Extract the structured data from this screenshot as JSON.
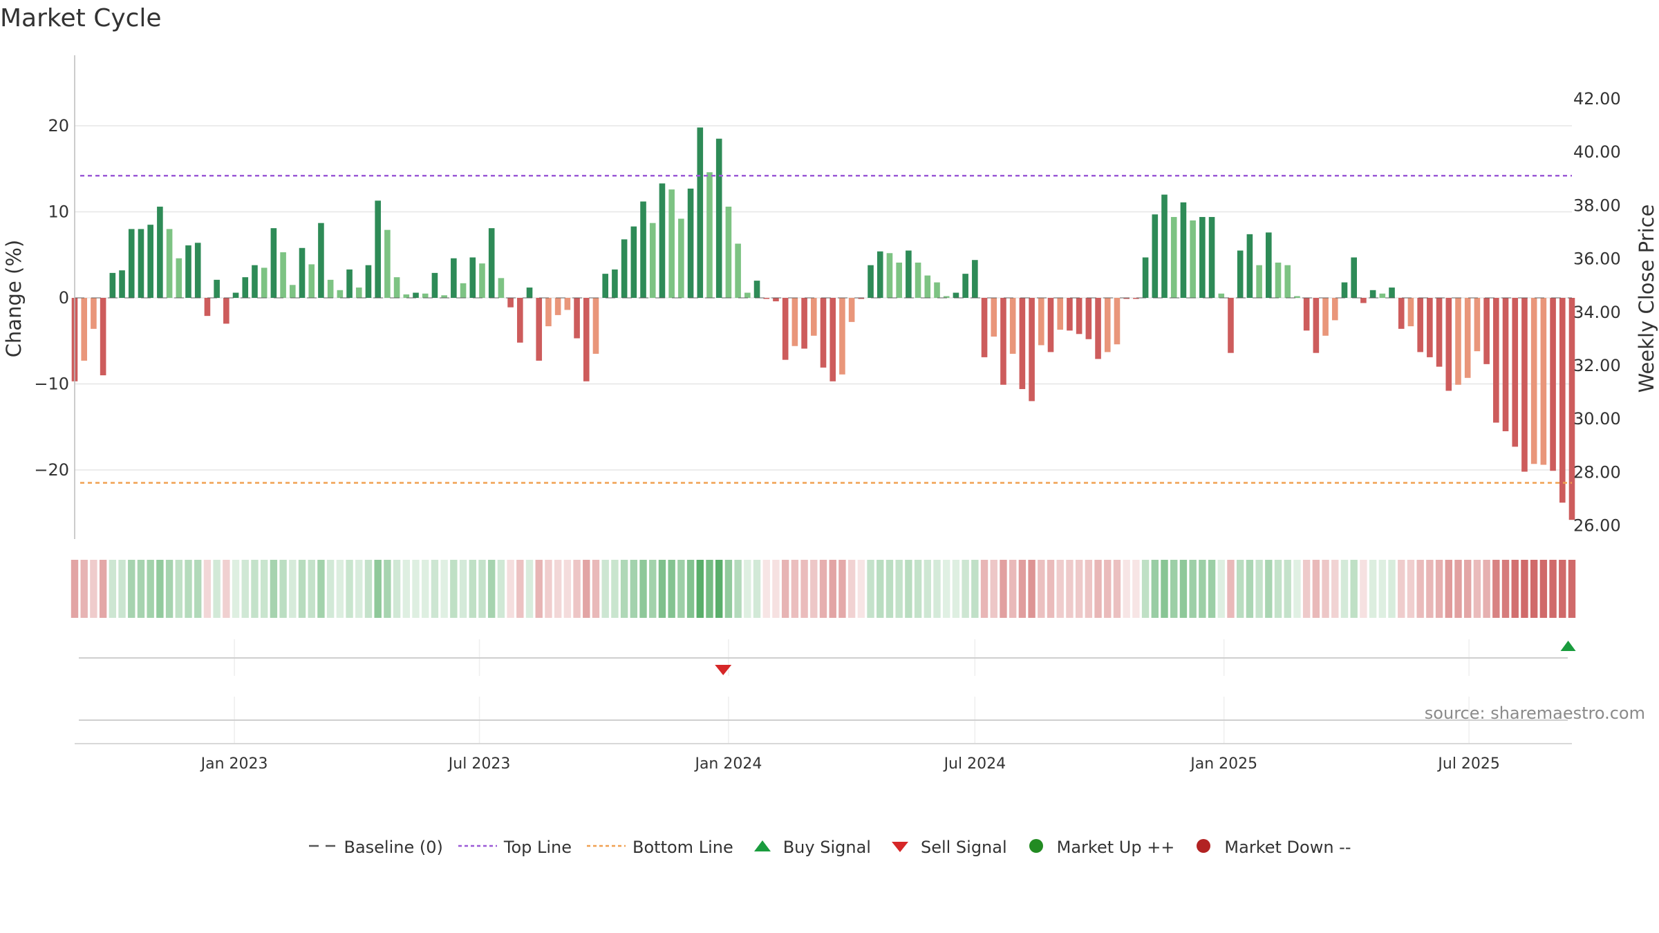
{
  "title": "Market Cycle",
  "source_text": "source: sharemaestro.com",
  "colors": {
    "up_strong": "#2e8b57",
    "up_light": "#7dc383",
    "down_strong": "#cd5c5c",
    "down_light": "#e9967a",
    "top_line": "#9b59d6",
    "bottom_line": "#f0a050",
    "baseline": "#555555",
    "buy": "#1a9c3e",
    "sell": "#d62728",
    "market_up": "#228b22",
    "market_down": "#b22222"
  },
  "legend": [
    {
      "label": "Baseline (0)",
      "symbol": "dash-line"
    },
    {
      "label": "Top Line",
      "symbol": "dotted-purple"
    },
    {
      "label": "Bottom Line",
      "symbol": "dotted-orange"
    },
    {
      "label": "Buy Signal",
      "symbol": "triangle-up-icon"
    },
    {
      "label": "Sell Signal",
      "symbol": "triangle-down-icon"
    },
    {
      "label": "Market Up ++",
      "symbol": "green-dot-icon"
    },
    {
      "label": "Market Down --",
      "symbol": "red-dot-icon"
    }
  ],
  "chart_data": {
    "type": "bar",
    "title": "Market Cycle",
    "ylabel": "Change (%)",
    "y2label": "Weekly Close Price",
    "ylim": [
      -28,
      28
    ],
    "y_ticks": [
      20,
      10,
      0,
      -10,
      -20
    ],
    "y_tick_labels": [
      "20",
      "10",
      "0",
      "−10",
      "−20"
    ],
    "y2lim": [
      25.6,
      43.8
    ],
    "y2_ticks": [
      42,
      40,
      38,
      36,
      34,
      32,
      30,
      28,
      26
    ],
    "y2_tick_labels": [
      "42.00",
      "40.00",
      "38.00",
      "36.00",
      "34.00",
      "32.00",
      "30.00",
      "28.00",
      "26.00"
    ],
    "x_range": [
      "2022-09-05",
      "2025-09-15"
    ],
    "x_ticks": [
      {
        "date": "2023-01-01",
        "label": "Jan 2023"
      },
      {
        "date": "2023-07-01",
        "label": "Jul 2023"
      },
      {
        "date": "2024-01-01",
        "label": "Jan 2024"
      },
      {
        "date": "2024-07-01",
        "label": "Jul 2024"
      },
      {
        "date": "2025-01-01",
        "label": "Jan 2025"
      },
      {
        "date": "2025-07-01",
        "label": "Jul 2025"
      }
    ],
    "top_line": 14.2,
    "bottom_line": -21.5,
    "grid": true,
    "first_week": "2022-09-05",
    "weeks": 157,
    "values": [
      -9.7,
      -7.3,
      -3.6,
      -9,
      2.9,
      3.2,
      8,
      8,
      8.5,
      10.6,
      8,
      4.6,
      6.1,
      6.4,
      -2.1,
      2.1,
      -3,
      0.6,
      2.4,
      3.8,
      3.5,
      8.1,
      5.3,
      1.5,
      5.8,
      3.9,
      8.7,
      2.1,
      0.9,
      3.3,
      1.2,
      3.8,
      11.3,
      7.9,
      2.4,
      0.4,
      0.6,
      0.5,
      2.9,
      0.3,
      4.6,
      1.7,
      4.7,
      4,
      8.1,
      2.3,
      -1.1,
      -5.2,
      1.2,
      -7.3,
      -3.3,
      -2,
      -1.4,
      -4.7,
      -9.7,
      -6.5,
      2.8,
      3.3,
      6.8,
      8.3,
      11.2,
      8.7,
      13.3,
      12.6,
      9.2,
      12.7,
      19.8,
      14.6,
      18.5,
      10.6,
      6.3,
      0.6,
      2,
      -0.1,
      -0.4,
      -7.2,
      -5.6,
      -5.9,
      -4.4,
      -8.1,
      -9.7,
      -8.9,
      -2.8,
      -0.1,
      3.8,
      5.4,
      5.2,
      4.1,
      5.5,
      4.1,
      2.6,
      1.8,
      0.2,
      0.6,
      2.8,
      4.4,
      -6.9,
      -4.5,
      -10.1,
      -6.5,
      -10.6,
      -12,
      -5.5,
      -6.3,
      -3.7,
      -3.8,
      -4.2,
      -4.8,
      -7.1,
      -6.3,
      -5.4,
      -0.1,
      -0.1,
      4.7,
      9.7,
      12,
      9.4,
      11.1,
      9,
      9.4,
      9.4,
      0.5,
      -6.4,
      5.5,
      7.4,
      3.8,
      7.6,
      4.1,
      3.8,
      0.2,
      -3.8,
      -6.4,
      -4.4,
      -2.6,
      1.8,
      4.7,
      -0.6,
      0.9,
      0.5,
      1.2,
      -3.6,
      -3.3,
      -6.3,
      -6.9,
      -8,
      -10.8,
      -10.1,
      -9.3,
      -6.2,
      -7.7,
      -14.5,
      -15.5,
      -17.3,
      -20.2,
      -19.3,
      -19.4,
      -20.1,
      -23.8,
      -25.8
    ],
    "week_kind": [
      "s",
      "l",
      "l",
      "s",
      "s",
      "s",
      "s",
      "s",
      "s",
      "s",
      "l",
      "l",
      "s",
      "s",
      "s",
      "s",
      "s",
      "s",
      "s",
      "s",
      "l",
      "s",
      "l",
      "l",
      "s",
      "l",
      "s",
      "l",
      "l",
      "s",
      "l",
      "s",
      "s",
      "l",
      "l",
      "l",
      "s",
      "l",
      "s",
      "l",
      "s",
      "l",
      "s",
      "l",
      "s",
      "l",
      "s",
      "s",
      "s",
      "s",
      "l",
      "l",
      "l",
      "s",
      "s",
      "l",
      "s",
      "s",
      "s",
      "s",
      "s",
      "l",
      "s",
      "l",
      "l",
      "s",
      "s",
      "l",
      "s",
      "l",
      "l",
      "l",
      "s",
      "s",
      "s",
      "s",
      "l",
      "s",
      "l",
      "s",
      "s",
      "l",
      "l",
      "s",
      "s",
      "s",
      "l",
      "l",
      "s",
      "l",
      "l",
      "l",
      "l",
      "s",
      "s",
      "s",
      "s",
      "l",
      "s",
      "l",
      "s",
      "s",
      "l",
      "s",
      "l",
      "s",
      "s",
      "s",
      "s",
      "l",
      "l",
      "s",
      "s",
      "s",
      "s",
      "s",
      "l",
      "s",
      "l",
      "s",
      "s",
      "l",
      "s",
      "s",
      "s",
      "l",
      "s",
      "l",
      "l",
      "l",
      "s",
      "s",
      "l",
      "l",
      "s",
      "s",
      "s",
      "s",
      "l",
      "s",
      "s",
      "l",
      "s",
      "s",
      "s",
      "s",
      "l",
      "l",
      "l",
      "s",
      "s",
      "s",
      "s",
      "s",
      "l",
      "l",
      "s",
      "s",
      "s"
    ],
    "buy_signals": [
      "2025-09-01"
    ],
    "sell_signals": [
      "2023-12-25"
    ]
  }
}
